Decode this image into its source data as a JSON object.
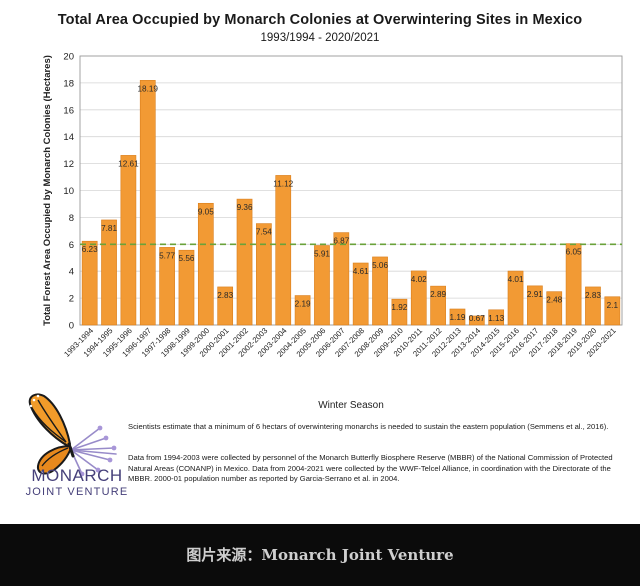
{
  "chart_data": {
    "type": "bar",
    "title": "Total Area Occupied by Monarch Colonies at Overwintering Sites in Mexico",
    "subtitle": "1993/1994 - 2020/2021",
    "xlabel": "Winter Season",
    "ylabel": "Total Forest Area Occupied by Monarch Colonies (Hectares)",
    "ylim": [
      0,
      20
    ],
    "yticks": [
      0,
      2,
      4,
      6,
      8,
      10,
      12,
      14,
      16,
      18,
      20
    ],
    "grid": true,
    "reference_line": 6,
    "categories": [
      "1993-1994",
      "1994-1995",
      "1995-1996",
      "1996-1997",
      "1997-1998",
      "1998-1999",
      "1999-2000",
      "2000-2001",
      "2001-2002",
      "2002-2003",
      "2003-2004",
      "2004-2005",
      "2005-2006",
      "2006-2007",
      "2007-2008",
      "2008-2009",
      "2009-2010",
      "2010-2011",
      "2011-2012",
      "2012-2013",
      "2013-2014",
      "2014-2015",
      "2015-2016",
      "2016-2017",
      "2017-2018",
      "2018-2019",
      "2019-2020",
      "2020-2021"
    ],
    "values": [
      6.23,
      7.81,
      12.61,
      18.19,
      5.77,
      5.56,
      9.05,
      2.83,
      9.36,
      7.54,
      11.12,
      2.19,
      5.91,
      6.87,
      4.61,
      5.06,
      1.92,
      4.02,
      2.89,
      1.19,
      0.67,
      1.13,
      4.01,
      2.91,
      2.48,
      6.05,
      2.83,
      2.1
    ],
    "labels": [
      "6.23",
      "7.81",
      "12.61",
      "18.19",
      "5.77",
      "5.56",
      "9.05",
      "2.83",
      "9.36",
      "7.54",
      "11.12",
      "2.19",
      "5.91",
      "6.87",
      "4.61",
      "5.06",
      "1.92",
      "4.02",
      "2.89",
      "1.19",
      "0.67",
      "1.13",
      "4.01",
      "2.91",
      "2.48",
      "6.05",
      "2.83",
      "2.1"
    ],
    "colors": {
      "bar": "#f29a34",
      "bar_edge": "#d97e1c",
      "reference_line": "#6aa23a",
      "grid": "#d6d6d6"
    }
  },
  "logo": {
    "line1": "MONARCH",
    "line2": "JOINT VENTURE",
    "text_color": "#46407a"
  },
  "notes": {
    "note1": "Scientists estimate that a minimum of 6 hectars of overwintering monarchs is needed to sustain the eastern population (Semmens et al., 2016).",
    "note2": "Data from 1994-2003 were collected by personnel of the Monarch Butterfly Biosphere Reserve (MBBR) of the National Commission of Protected Natural Areas (CONANP) in Mexico. Data from 2004-2021 were collected by the WWF-Telcel Alliance, in coordination with the Directorate of the MBBR. 2000-01 population number as reported by Garcia-Serrano et al. in 2004."
  },
  "footer": {
    "caption": "图片来源：Monarch Joint Venture"
  }
}
